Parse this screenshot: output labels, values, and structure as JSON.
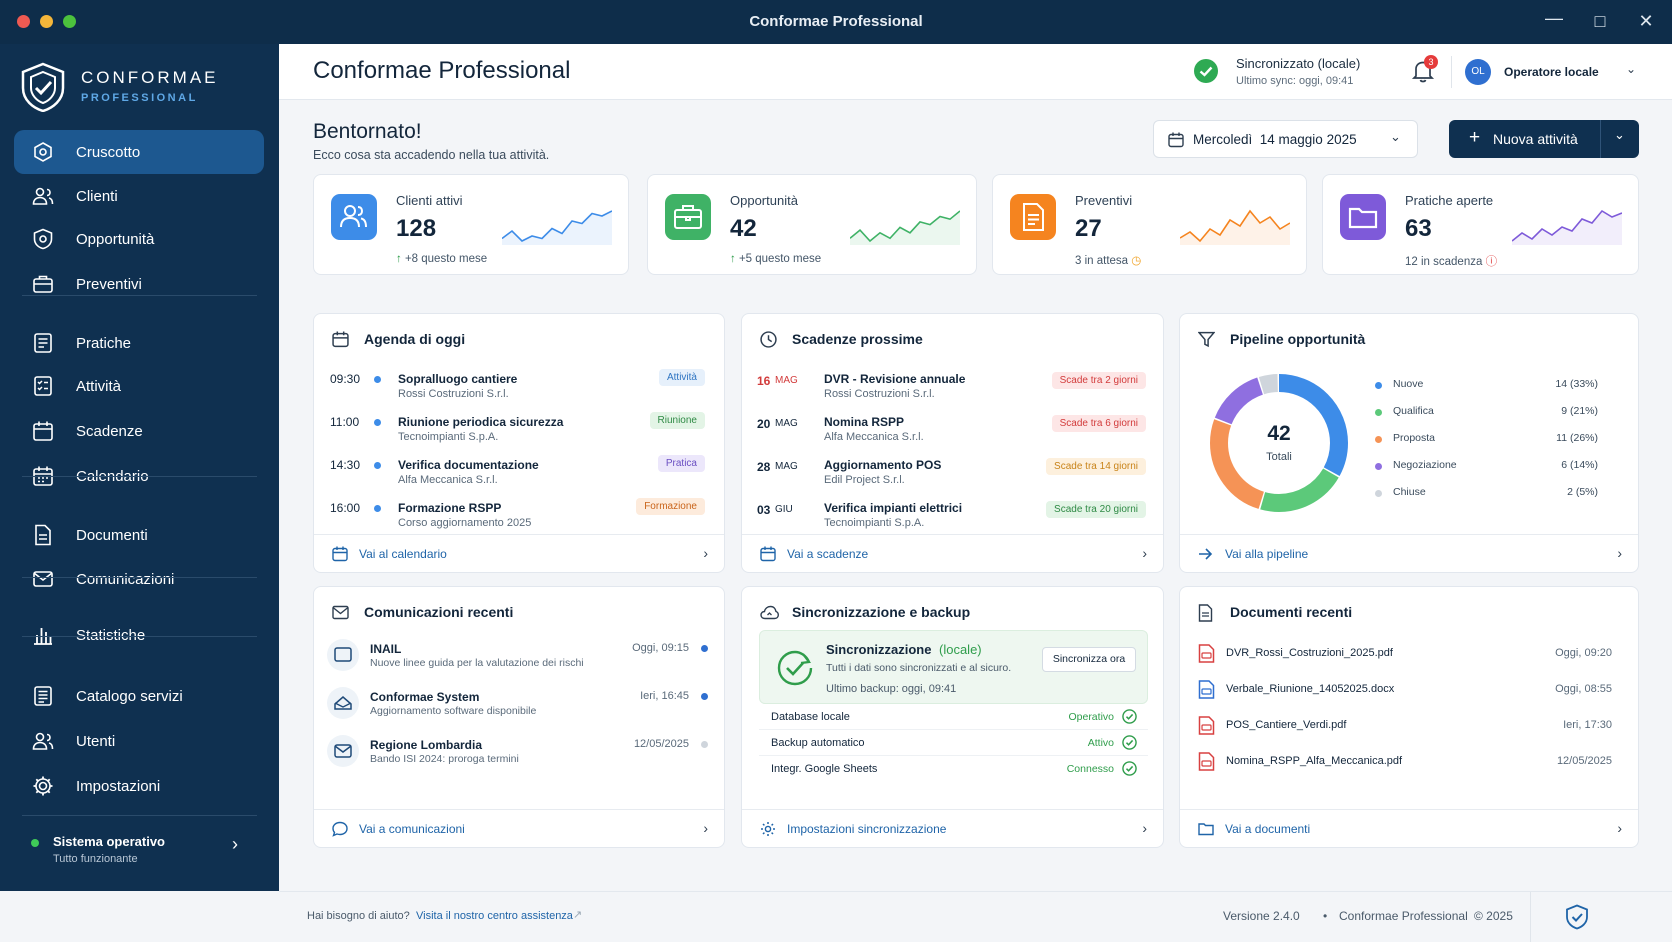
{
  "window": {
    "title": "Conformae Professional"
  },
  "brand": {
    "name": "CONFORMAE",
    "sub": "PROFESSIONAL"
  },
  "sidebar": {
    "items": [
      {
        "label": "Cruscotto",
        "icon": "dashboard-icon"
      },
      {
        "label": "Clienti",
        "icon": "users-icon"
      },
      {
        "label": "Opportunità",
        "icon": "target-icon"
      },
      {
        "label": "Preventivi",
        "icon": "briefcase-icon"
      },
      {
        "label": "Pratiche",
        "icon": "file-list-icon"
      },
      {
        "label": "Attività",
        "icon": "checklist-icon"
      },
      {
        "label": "Scadenze",
        "icon": "calendar-icon"
      },
      {
        "label": "Calendario",
        "icon": "calendar-grid-icon"
      },
      {
        "label": "Documenti",
        "icon": "document-icon"
      },
      {
        "label": "Comunicazioni",
        "icon": "mail-icon"
      },
      {
        "label": "Statistiche",
        "icon": "bar-chart-icon"
      },
      {
        "label": "Catalogo servizi",
        "icon": "catalog-icon"
      },
      {
        "label": "Utenti",
        "icon": "user-group-icon"
      },
      {
        "label": "Impostazioni",
        "icon": "gear-icon"
      }
    ],
    "status": {
      "title": "Sistema operativo",
      "sub": "Tutto funzionante"
    }
  },
  "header": {
    "title": "Conformae Professional",
    "sync_title": "Sincronizzato (locale)",
    "sync_sub": "Ultimo sync: oggi, 09:41",
    "notif_count": "3",
    "avatar": "OL",
    "user": "Operatore locale"
  },
  "welcome": {
    "title": "Bentornato!",
    "sub": "Ecco cosa sta accadendo nella tua attività."
  },
  "date_picker": {
    "value": "Mercoledì  14 maggio 2025"
  },
  "new_button": {
    "label": "Nuova attività"
  },
  "stats": [
    {
      "label": "Clienti attivi",
      "value": "128",
      "sub": "+8 questo mese",
      "color": "#3d8ce8",
      "trend": [
        12,
        15,
        11,
        13,
        12,
        16,
        14,
        19,
        18,
        22,
        21,
        23
      ]
    },
    {
      "label": "Opportunità",
      "value": "42",
      "sub": "+5 questo mese",
      "color": "#3fb266",
      "trend": [
        10,
        13,
        9,
        12,
        10,
        14,
        12,
        16,
        15,
        18,
        17,
        20
      ]
    },
    {
      "label": "Preventivi",
      "value": "27",
      "sub": "3 in attesa",
      "color": "#f5841f",
      "trend": [
        12,
        14,
        11,
        15,
        13,
        18,
        16,
        21,
        17,
        19,
        15,
        17
      ]
    },
    {
      "label": "Pratiche aperte",
      "value": "63",
      "sub": "12 in scadenza",
      "color": "#7e5ad9",
      "trend": [
        8,
        12,
        9,
        14,
        11,
        15,
        13,
        19,
        17,
        23,
        20,
        22
      ]
    }
  ],
  "agenda": {
    "title": "Agenda di oggi",
    "link": "Vai al calendario",
    "items": [
      {
        "time": "09:30",
        "title": "Sopralluogo cantiere",
        "sub": "Rossi Costruzioni S.r.l.",
        "tag": "Attività",
        "tag_bg": "#e6f0fb",
        "tag_fg": "#2e74c2"
      },
      {
        "time": "11:00",
        "title": "Riunione periodica sicurezza",
        "sub": "Tecnoimpianti S.p.A.",
        "tag": "Riunione",
        "tag_bg": "#e3f4e6",
        "tag_fg": "#2f8a45"
      },
      {
        "time": "14:30",
        "title": "Verifica documentazione",
        "sub": "Alfa Meccanica S.r.l.",
        "tag": "Pratica",
        "tag_bg": "#ece7fb",
        "tag_fg": "#6a4fc2"
      },
      {
        "time": "16:00",
        "title": "Formazione RSPP",
        "sub": "Corso aggiornamento 2025",
        "tag": "Formazione",
        "tag_bg": "#fdebdc",
        "tag_fg": "#c9641a"
      }
    ]
  },
  "scadenze": {
    "title": "Scadenze prossime",
    "link": "Vai a scadenze",
    "items": [
      {
        "day": "16",
        "month": "MAG",
        "title": "DVR - Revisione annuale",
        "sub": "Rossi Costruzioni S.r.l.",
        "tag": "Scade tra 2 giorni",
        "tag_bg": "#fde6e6",
        "tag_fg": "#d23b3b",
        "day_color": "#d23b3b"
      },
      {
        "day": "20",
        "month": "MAG",
        "title": "Nomina RSPP",
        "sub": "Alfa Meccanica S.r.l.",
        "tag": "Scade tra 6 giorni",
        "tag_bg": "#fde6e6",
        "tag_fg": "#d23b3b",
        "day_color": "#13263b"
      },
      {
        "day": "28",
        "month": "MAG",
        "title": "Aggiornamento POS",
        "sub": "Edil Project S.r.l.",
        "tag": "Scade tra 14 giorni",
        "tag_bg": "#fdf0dd",
        "tag_fg": "#c9841a",
        "day_color": "#13263b"
      },
      {
        "day": "03",
        "month": "GIU",
        "title": "Verifica impianti elettrici",
        "sub": "Tecnoimpianti S.p.A.",
        "tag": "Scade tra 20 giorni",
        "tag_bg": "#e3f4e6",
        "tag_fg": "#2f8a45",
        "day_color": "#13263b"
      }
    ]
  },
  "pipeline": {
    "title": "Pipeline opportunità",
    "link": "Vai alla pipeline",
    "total": "42",
    "total_label": "Totali",
    "items": [
      {
        "name": "Nuove",
        "count": "14 (33%)",
        "value": 14,
        "color": "#3d8ce8"
      },
      {
        "name": "Qualifica",
        "count": "9 (21%)",
        "value": 9,
        "color": "#5cc97a"
      },
      {
        "name": "Proposta",
        "count": "11 (26%)",
        "value": 11,
        "color": "#f59356"
      },
      {
        "name": "Negoziazione",
        "count": "6 (14%)",
        "value": 6,
        "color": "#8f6fe0"
      },
      {
        "name": "Chiuse",
        "count": "2 (5%)",
        "value": 2,
        "color": "#cfd5dc"
      }
    ]
  },
  "comunicazioni": {
    "title": "Comunicazioni recenti",
    "link": "Vai a comunicazioni",
    "items": [
      {
        "title": "INAIL",
        "sub": "Nuove linee guida per la valutazione dei rischi",
        "time": "Oggi, 09:15",
        "unread": true
      },
      {
        "title": "Conformae System",
        "sub": "Aggiornamento software disponibile",
        "time": "Ieri, 16:45",
        "unread": true
      },
      {
        "title": "Regione Lombardia",
        "sub": "Bando ISI 2024: proroga termini",
        "time": "12/05/2025",
        "unread": false
      }
    ]
  },
  "sync": {
    "title": "Sincronizzazione e backup",
    "link": "Impostazioni sincronizzazione",
    "box_title": "Sincronizzazione",
    "box_title_tag": "(locale)",
    "box_sub": "Tutti i dati sono sincronizzati e al sicuro.",
    "box_backup": "Ultimo backup: oggi, 09:41",
    "button": "Sincronizza ora",
    "rows": [
      {
        "label": "Database locale",
        "status": "Operativo"
      },
      {
        "label": "Backup automatico",
        "status": "Attivo"
      },
      {
        "label": "Integr. Google Sheets",
        "status": "Connesso"
      }
    ]
  },
  "documenti": {
    "title": "Documenti recenti",
    "link": "Vai a documenti",
    "items": [
      {
        "name": "DVR_Rossi_Costruzioni_2025.pdf",
        "time": "Oggi, 09:20",
        "type": "pdf"
      },
      {
        "name": "Verbale_Riunione_14052025.docx",
        "time": "Oggi, 08:55",
        "type": "docx"
      },
      {
        "name": "POS_Cantiere_Verdi.pdf",
        "time": "Ieri, 17:30",
        "type": "pdf"
      },
      {
        "name": "Nomina_RSPP_Alfa_Meccanica.pdf",
        "time": "12/05/2025",
        "type": "pdf"
      }
    ]
  },
  "footer": {
    "help": "Hai bisogno di aiuto?",
    "link": "Visita il nostro centro assistenza",
    "version": "Versione 2.4.0",
    "product": "Conformae Professional",
    "year": "© 2025"
  }
}
